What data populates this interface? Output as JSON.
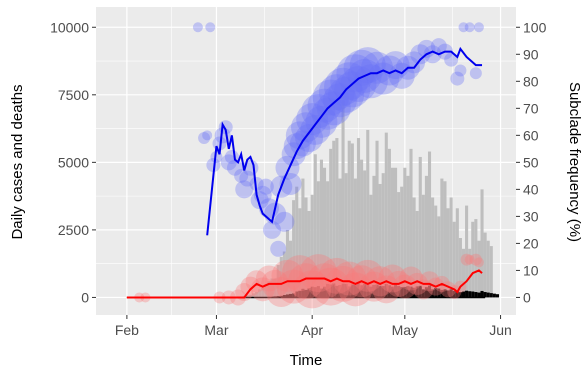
{
  "chart_data": {
    "type": "bar",
    "title": "",
    "xlabel": "Time",
    "ylabel": "Daily cases and deaths",
    "y2label": "Subclade frequency (%)",
    "x_ticks": [
      "Feb",
      "Mar",
      "Apr",
      "May",
      "Jun"
    ],
    "x_tick_dates": [
      "2020-02-01",
      "2020-03-01",
      "2020-04-01",
      "2020-05-01",
      "2020-06-01"
    ],
    "xlim": [
      "2020-01-22",
      "2020-06-06"
    ],
    "ylim": [
      -650,
      10750
    ],
    "y_ticks": [
      0,
      2500,
      5000,
      7500,
      10000
    ],
    "y_tick_labels": [
      "0",
      "2500",
      "5000",
      "7500",
      "10000"
    ],
    "y2lim": [
      -6.5,
      107.5
    ],
    "y2_ticks": [
      0,
      10,
      20,
      30,
      40,
      50,
      60,
      70,
      80,
      90,
      100
    ],
    "y2_tick_labels": [
      "0",
      "10",
      "20",
      "30",
      "40",
      "50",
      "60",
      "70",
      "80",
      "90",
      "100"
    ],
    "grid": true,
    "legend": "none",
    "colors": {
      "panel": "#ebebeb",
      "grid": "#ffffff",
      "cases_bar": "#bebebe",
      "deaths_bar": "#000000",
      "blue_line": "#0000ee",
      "blue_points": "#6b74f5",
      "red_line": "#ff0000",
      "red_points": "#f87c7c"
    },
    "daily_cases": {
      "start": "2020-03-10",
      "values": [
        60,
        80,
        100,
        150,
        200,
        300,
        350,
        500,
        600,
        700,
        700,
        1200,
        1500,
        1700,
        2500,
        2100,
        3600,
        4100,
        3300,
        4400,
        3700,
        3200,
        3800,
        5300,
        4300,
        5100,
        4800,
        4300,
        5500,
        5800,
        5900,
        4400,
        7300,
        4600,
        5800,
        5700,
        4400,
        5900,
        5100,
        4700,
        6200,
        3800,
        4500,
        5800,
        4200,
        4600,
        6100,
        5500,
        4800,
        4800,
        3900,
        4100,
        4800,
        4500,
        5500,
        3700,
        3200,
        5200,
        3800,
        4500,
        5400,
        3700,
        3400,
        3000,
        4400,
        4300,
        3300,
        3700,
        2800,
        3300,
        2200,
        1800,
        3400,
        1800,
        2800,
        2900,
        2100,
        4000,
        2400,
        2100,
        1900
      ]
    },
    "daily_deaths": {
      "start": "2020-03-15",
      "values": [
        5,
        10,
        15,
        20,
        30,
        40,
        50,
        60,
        90,
        110,
        130,
        150,
        220,
        250,
        320,
        280,
        350,
        400,
        380,
        420,
        330,
        400,
        500,
        480,
        520,
        430,
        460,
        510,
        500,
        410,
        480,
        460,
        520,
        450,
        500,
        470,
        400,
        460,
        480,
        430,
        420,
        500,
        450,
        400,
        470,
        420,
        380,
        390,
        420,
        400,
        360,
        410,
        430,
        300,
        380,
        440,
        300,
        350,
        330,
        280,
        300,
        260,
        300,
        240,
        250,
        200,
        220,
        250,
        230,
        220,
        200,
        180,
        240,
        200,
        180,
        160,
        140,
        120
      ]
    },
    "subclade_blue": {
      "name": "",
      "line": [
        [
          "2020-02-27",
          23
        ],
        [
          "2020-02-28",
          34
        ],
        [
          "2020-03-01",
          56
        ],
        [
          "2020-03-02",
          53
        ],
        [
          "2020-03-03",
          64
        ],
        [
          "2020-03-04",
          62
        ],
        [
          "2020-03-05",
          55
        ],
        [
          "2020-03-06",
          60
        ],
        [
          "2020-03-07",
          51
        ],
        [
          "2020-03-08",
          50
        ],
        [
          "2020-03-09",
          53
        ],
        [
          "2020-03-10",
          47
        ],
        [
          "2020-03-11",
          51
        ],
        [
          "2020-03-12",
          52
        ],
        [
          "2020-03-13",
          49
        ],
        [
          "2020-03-14",
          38
        ],
        [
          "2020-03-15",
          34
        ],
        [
          "2020-03-16",
          31
        ],
        [
          "2020-03-17",
          30
        ],
        [
          "2020-03-18",
          29
        ],
        [
          "2020-03-19",
          28
        ],
        [
          "2020-03-20",
          33
        ],
        [
          "2020-03-21",
          38
        ],
        [
          "2020-03-23",
          44
        ],
        [
          "2020-03-25",
          49
        ],
        [
          "2020-03-27",
          54
        ],
        [
          "2020-03-29",
          58
        ],
        [
          "2020-03-31",
          61
        ],
        [
          "2020-04-02",
          64
        ],
        [
          "2020-04-04",
          67
        ],
        [
          "2020-04-06",
          70
        ],
        [
          "2020-04-08",
          72
        ],
        [
          "2020-04-10",
          74
        ],
        [
          "2020-04-12",
          77
        ],
        [
          "2020-04-14",
          79
        ],
        [
          "2020-04-16",
          81
        ],
        [
          "2020-04-18",
          82
        ],
        [
          "2020-04-20",
          83
        ],
        [
          "2020-04-22",
          83
        ],
        [
          "2020-04-24",
          84
        ],
        [
          "2020-04-26",
          83
        ],
        [
          "2020-04-28",
          84
        ],
        [
          "2020-04-30",
          83
        ],
        [
          "2020-05-02",
          85
        ],
        [
          "2020-05-04",
          85
        ],
        [
          "2020-05-06",
          88
        ],
        [
          "2020-05-08",
          90
        ],
        [
          "2020-05-10",
          91
        ],
        [
          "2020-05-12",
          90
        ],
        [
          "2020-05-14",
          91
        ],
        [
          "2020-05-16",
          91
        ],
        [
          "2020-05-18",
          89
        ],
        [
          "2020-05-19",
          92
        ],
        [
          "2020-05-21",
          89
        ],
        [
          "2020-05-23",
          87
        ],
        [
          "2020-05-24",
          86
        ],
        [
          "2020-05-26",
          86
        ]
      ],
      "points": [
        [
          "2020-02-24",
          100,
          5
        ],
        [
          "2020-02-28",
          100,
          5
        ],
        [
          "2020-02-26",
          59,
          6
        ],
        [
          "2020-02-27",
          60,
          5
        ],
        [
          "2020-02-29",
          49,
          7
        ],
        [
          "2020-03-01",
          52,
          6
        ],
        [
          "2020-03-02",
          57,
          7
        ],
        [
          "2020-03-03",
          60,
          8
        ],
        [
          "2020-03-04",
          63,
          7
        ],
        [
          "2020-03-05",
          50,
          8
        ],
        [
          "2020-03-06",
          52,
          7
        ],
        [
          "2020-03-07",
          48,
          8
        ],
        [
          "2020-03-09",
          45,
          7
        ],
        [
          "2020-03-10",
          40,
          9
        ],
        [
          "2020-03-11",
          44,
          8
        ],
        [
          "2020-03-12",
          48,
          8
        ],
        [
          "2020-03-14",
          42,
          7
        ],
        [
          "2020-03-15",
          36,
          9
        ],
        [
          "2020-03-16",
          38,
          9
        ],
        [
          "2020-03-17",
          41,
          8
        ],
        [
          "2020-03-18",
          33,
          10
        ],
        [
          "2020-03-19",
          25,
          9
        ],
        [
          "2020-03-20",
          31,
          11
        ],
        [
          "2020-03-21",
          18,
          8
        ],
        [
          "2020-03-22",
          41,
          11
        ],
        [
          "2020-03-23",
          28,
          10
        ],
        [
          "2020-03-24",
          48,
          12
        ],
        [
          "2020-03-25",
          42,
          11
        ],
        [
          "2020-03-26",
          53,
          12
        ],
        [
          "2020-03-27",
          56,
          13
        ],
        [
          "2020-03-28",
          60,
          14
        ],
        [
          "2020-03-29",
          57,
          13
        ],
        [
          "2020-03-30",
          63,
          15
        ],
        [
          "2020-03-31",
          59,
          14
        ],
        [
          "2020-04-01",
          66,
          16
        ],
        [
          "2020-04-02",
          62,
          15
        ],
        [
          "2020-04-03",
          69,
          17
        ],
        [
          "2020-04-04",
          65,
          16
        ],
        [
          "2020-04-05",
          71,
          17
        ],
        [
          "2020-04-06",
          68,
          16
        ],
        [
          "2020-04-07",
          74,
          18
        ],
        [
          "2020-04-08",
          70,
          17
        ],
        [
          "2020-04-09",
          76,
          18
        ],
        [
          "2020-04-10",
          73,
          17
        ],
        [
          "2020-04-11",
          78,
          19
        ],
        [
          "2020-04-12",
          75,
          18
        ],
        [
          "2020-04-13",
          80,
          19
        ],
        [
          "2020-04-14",
          77,
          18
        ],
        [
          "2020-04-15",
          83,
          19
        ],
        [
          "2020-04-16",
          79,
          18
        ],
        [
          "2020-04-17",
          85,
          18
        ],
        [
          "2020-04-18",
          82,
          17
        ],
        [
          "2020-04-19",
          86,
          18
        ],
        [
          "2020-04-20",
          80,
          17
        ],
        [
          "2020-04-22",
          85,
          16
        ],
        [
          "2020-04-24",
          81,
          16
        ],
        [
          "2020-04-26",
          84,
          15
        ],
        [
          "2020-04-28",
          86,
          14
        ],
        [
          "2020-04-30",
          82,
          13
        ],
        [
          "2020-05-02",
          85,
          12
        ],
        [
          "2020-05-04",
          87,
          11
        ],
        [
          "2020-05-06",
          90,
          10
        ],
        [
          "2020-05-08",
          92,
          9
        ],
        [
          "2020-05-10",
          90,
          9
        ],
        [
          "2020-05-12",
          93,
          8
        ],
        [
          "2020-05-14",
          91,
          8
        ],
        [
          "2020-05-16",
          88,
          7
        ],
        [
          "2020-05-18",
          81,
          7
        ],
        [
          "2020-05-19",
          84,
          6
        ],
        [
          "2020-05-20",
          100,
          5
        ],
        [
          "2020-05-22",
          100,
          5
        ],
        [
          "2020-05-24",
          83,
          6
        ],
        [
          "2020-05-25",
          100,
          5
        ]
      ]
    },
    "subclade_red": {
      "name": "",
      "line": [
        [
          "2020-02-01",
          0
        ],
        [
          "2020-02-15",
          0
        ],
        [
          "2020-03-01",
          0
        ],
        [
          "2020-03-08",
          0
        ],
        [
          "2020-03-10",
          0
        ],
        [
          "2020-03-12",
          3
        ],
        [
          "2020-03-14",
          5
        ],
        [
          "2020-03-16",
          4
        ],
        [
          "2020-03-18",
          5
        ],
        [
          "2020-03-20",
          5
        ],
        [
          "2020-03-22",
          5
        ],
        [
          "2020-03-24",
          6
        ],
        [
          "2020-03-26",
          6
        ],
        [
          "2020-03-28",
          6
        ],
        [
          "2020-03-30",
          7
        ],
        [
          "2020-04-01",
          7
        ],
        [
          "2020-04-03",
          7
        ],
        [
          "2020-04-05",
          7
        ],
        [
          "2020-04-07",
          6
        ],
        [
          "2020-04-09",
          7
        ],
        [
          "2020-04-11",
          6
        ],
        [
          "2020-04-13",
          6
        ],
        [
          "2020-04-15",
          5
        ],
        [
          "2020-04-17",
          6
        ],
        [
          "2020-04-19",
          5
        ],
        [
          "2020-04-21",
          6
        ],
        [
          "2020-04-23",
          5
        ],
        [
          "2020-04-25",
          6
        ],
        [
          "2020-04-27",
          5
        ],
        [
          "2020-04-29",
          5
        ],
        [
          "2020-05-01",
          6
        ],
        [
          "2020-05-03",
          5
        ],
        [
          "2020-05-05",
          6
        ],
        [
          "2020-05-07",
          5
        ],
        [
          "2020-05-09",
          5
        ],
        [
          "2020-05-11",
          4
        ],
        [
          "2020-05-13",
          5
        ],
        [
          "2020-05-15",
          4
        ],
        [
          "2020-05-17",
          3
        ],
        [
          "2020-05-18",
          2
        ],
        [
          "2020-05-19",
          4
        ],
        [
          "2020-05-21",
          6
        ],
        [
          "2020-05-23",
          9
        ],
        [
          "2020-05-25",
          10
        ],
        [
          "2020-05-26",
          9
        ]
      ],
      "points": [
        [
          "2020-02-05",
          0,
          5
        ],
        [
          "2020-02-07",
          0,
          5
        ],
        [
          "2020-03-02",
          0,
          6
        ],
        [
          "2020-03-05",
          0,
          7
        ],
        [
          "2020-03-08",
          0,
          8
        ],
        [
          "2020-03-10",
          2,
          9
        ],
        [
          "2020-03-12",
          4,
          10
        ],
        [
          "2020-03-14",
          6,
          11
        ],
        [
          "2020-03-16",
          3,
          12
        ],
        [
          "2020-03-18",
          7,
          13
        ],
        [
          "2020-03-20",
          5,
          14
        ],
        [
          "2020-03-22",
          2,
          15
        ],
        [
          "2020-03-24",
          8,
          16
        ],
        [
          "2020-03-26",
          4,
          17
        ],
        [
          "2020-03-28",
          9,
          18
        ],
        [
          "2020-03-30",
          6,
          18
        ],
        [
          "2020-04-01",
          3,
          19
        ],
        [
          "2020-04-03",
          9,
          19
        ],
        [
          "2020-04-05",
          6,
          18
        ],
        [
          "2020-04-07",
          4,
          19
        ],
        [
          "2020-04-09",
          8,
          18
        ],
        [
          "2020-04-11",
          5,
          18
        ],
        [
          "2020-04-13",
          7,
          17
        ],
        [
          "2020-04-15",
          3,
          17
        ],
        [
          "2020-04-17",
          6,
          16
        ],
        [
          "2020-04-19",
          8,
          16
        ],
        [
          "2020-04-21",
          4,
          15
        ],
        [
          "2020-04-23",
          6,
          15
        ],
        [
          "2020-04-25",
          3,
          14
        ],
        [
          "2020-04-27",
          7,
          14
        ],
        [
          "2020-04-29",
          5,
          13
        ],
        [
          "2020-05-01",
          4,
          12
        ],
        [
          "2020-05-03",
          7,
          12
        ],
        [
          "2020-05-05",
          5,
          11
        ],
        [
          "2020-05-07",
          3,
          10
        ],
        [
          "2020-05-09",
          6,
          10
        ],
        [
          "2020-05-11",
          4,
          9
        ],
        [
          "2020-05-13",
          5,
          8
        ],
        [
          "2020-05-15",
          3,
          8
        ],
        [
          "2020-05-17",
          2,
          7
        ],
        [
          "2020-05-19",
          4,
          6
        ],
        [
          "2020-05-21",
          14,
          6
        ],
        [
          "2020-05-22",
          14,
          5
        ],
        [
          "2020-05-24",
          14,
          6
        ],
        [
          "2020-05-25",
          13,
          5
        ]
      ]
    }
  }
}
